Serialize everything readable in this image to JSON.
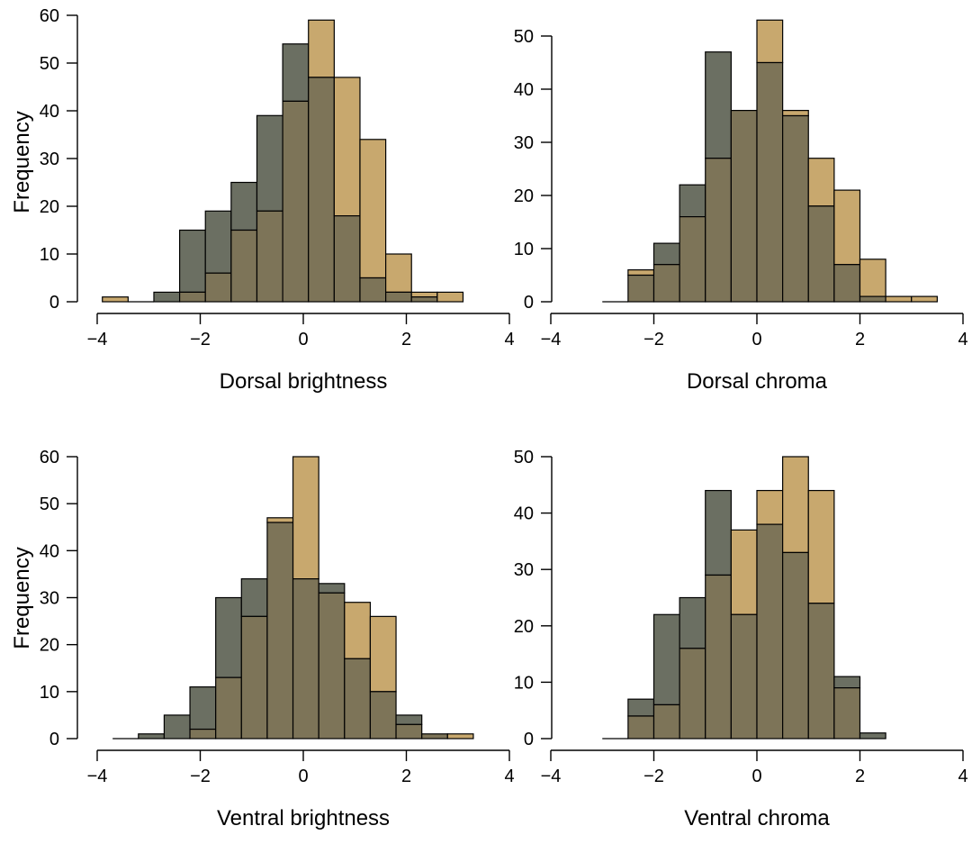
{
  "colors": {
    "series_a": "#c8a86e",
    "series_b": "#6b6f62",
    "overlap": "#7d7458",
    "axis": "#000000"
  },
  "chart_data": [
    {
      "type": "bar",
      "panel": "top-left",
      "xlabel": "Dorsal brightness",
      "ylabel": "Frequency",
      "xlim": [
        -4,
        4
      ],
      "ylim": [
        0,
        60
      ],
      "xticks": [
        -4,
        -2,
        0,
        2,
        4
      ],
      "yticks": [
        0,
        10,
        20,
        30,
        40,
        50,
        60
      ],
      "bin_edges": [
        -3.9,
        -3.4,
        -2.9,
        -2.4,
        -1.9,
        -1.4,
        -0.9,
        -0.4,
        0.1,
        0.6,
        1.1,
        1.6,
        2.1,
        2.6,
        3.1
      ],
      "series": [
        {
          "values": [
            1,
            0,
            0,
            2,
            6,
            15,
            19,
            42,
            59,
            47,
            34,
            10,
            2,
            2
          ]
        },
        {
          "values": [
            0,
            0,
            2,
            15,
            19,
            25,
            39,
            54,
            47,
            18,
            5,
            2,
            1,
            0
          ]
        }
      ]
    },
    {
      "type": "bar",
      "panel": "top-right",
      "xlabel": "Dorsal chroma",
      "ylabel": "",
      "xlim": [
        -4,
        4
      ],
      "ylim": [
        0,
        50
      ],
      "xticks": [
        -4,
        -2,
        0,
        2,
        4
      ],
      "yticks": [
        0,
        10,
        20,
        30,
        40,
        50
      ],
      "bin_edges": [
        -3.0,
        -2.5,
        -2.0,
        -1.5,
        -1.0,
        -0.5,
        0.0,
        0.5,
        1.0,
        1.5,
        2.0,
        2.5,
        3.0,
        3.5
      ],
      "series": [
        {
          "values": [
            0,
            6,
            7,
            16,
            27,
            36,
            53,
            36,
            27,
            21,
            8,
            1,
            1
          ]
        },
        {
          "values": [
            0,
            5,
            11,
            22,
            47,
            36,
            45,
            35,
            18,
            7,
            1,
            0,
            0
          ]
        }
      ]
    },
    {
      "type": "bar",
      "panel": "bottom-left",
      "xlabel": "Ventral brightness",
      "ylabel": "Frequency",
      "xlim": [
        -4,
        4
      ],
      "ylim": [
        0,
        60
      ],
      "xticks": [
        -4,
        -2,
        0,
        2,
        4
      ],
      "yticks": [
        0,
        10,
        20,
        30,
        40,
        50,
        60
      ],
      "bin_edges": [
        -3.7,
        -3.2,
        -2.7,
        -2.2,
        -1.7,
        -1.2,
        -0.7,
        -0.2,
        0.3,
        0.8,
        1.3,
        1.8,
        2.3,
        2.8,
        3.3
      ],
      "series": [
        {
          "values": [
            0,
            0,
            0,
            2,
            13,
            26,
            47,
            60,
            31,
            29,
            26,
            3,
            1,
            1
          ]
        },
        {
          "values": [
            0,
            1,
            5,
            11,
            30,
            34,
            46,
            34,
            33,
            17,
            10,
            5,
            1,
            0
          ]
        }
      ]
    },
    {
      "type": "bar",
      "panel": "bottom-right",
      "xlabel": "Ventral chroma",
      "ylabel": "",
      "xlim": [
        -4,
        4
      ],
      "ylim": [
        0,
        50
      ],
      "xticks": [
        -4,
        -2,
        0,
        2,
        4
      ],
      "yticks": [
        0,
        10,
        20,
        30,
        40,
        50
      ],
      "bin_edges": [
        -3.0,
        -2.5,
        -2.0,
        -1.5,
        -1.0,
        -0.5,
        0.0,
        0.5,
        1.0,
        1.5,
        2.0,
        2.5
      ],
      "series": [
        {
          "values": [
            0,
            4,
            6,
            16,
            29,
            37,
            44,
            50,
            44,
            9,
            0
          ]
        },
        {
          "values": [
            0,
            7,
            22,
            25,
            44,
            22,
            38,
            33,
            24,
            11,
            1
          ]
        }
      ]
    }
  ]
}
